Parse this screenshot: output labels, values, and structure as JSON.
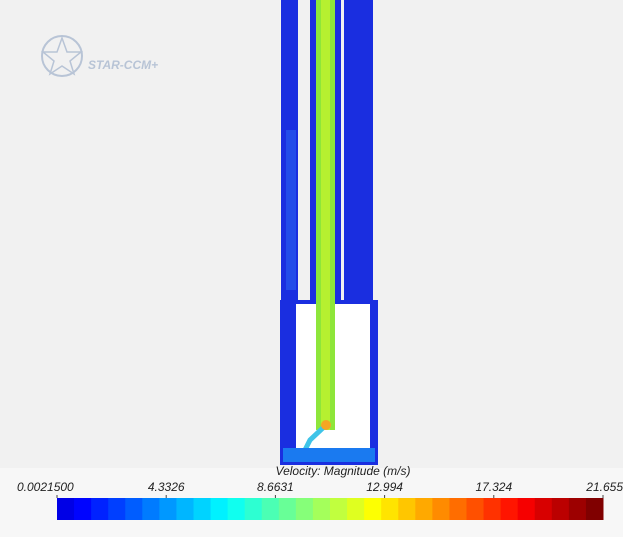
{
  "logo": "STAR-CCM+",
  "colorbar": {
    "title": "Velocity: Magnitude (m/s)",
    "ticks": [
      {
        "value": 0.00215,
        "label": "0.0021500"
      },
      4.3326,
      8.6631,
      12.994,
      17.324,
      21.655
    ]
  }
}
